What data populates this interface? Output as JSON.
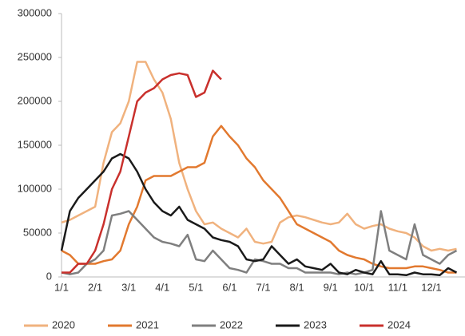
{
  "chart_data": {
    "type": "line",
    "categories": [
      "1/1",
      null,
      null,
      null,
      "2/1",
      null,
      null,
      null,
      "3/1",
      null,
      null,
      null,
      "4/1",
      null,
      null,
      null,
      "5/1",
      null,
      null,
      null,
      "6/1",
      null,
      null,
      null,
      "7/1",
      null,
      null,
      null,
      "8/1",
      null,
      null,
      null,
      "9/1",
      null,
      null,
      null,
      "10/1",
      null,
      null,
      null,
      "11/1",
      null,
      null,
      null,
      "12/1",
      null,
      null,
      null
    ],
    "ylim": [
      0,
      300000
    ],
    "yticks": [
      0,
      50000,
      100000,
      150000,
      200000,
      250000,
      300000
    ],
    "legend": "bottom",
    "series": [
      {
        "name": "2020",
        "color": "#f0b27e",
        "values": [
          62000,
          65000,
          70000,
          75000,
          80000,
          130000,
          165000,
          175000,
          200000,
          245000,
          245000,
          225000,
          210000,
          180000,
          130000,
          100000,
          75000,
          60000,
          62000,
          55000,
          50000,
          45000,
          55000,
          40000,
          38000,
          40000,
          62000,
          68000,
          70000,
          68000,
          65000,
          62000,
          60000,
          62000,
          72000,
          60000,
          55000,
          58000,
          60000,
          55000,
          52000,
          50000,
          45000,
          35000,
          30000,
          32000,
          30000,
          32000
        ]
      },
      {
        "name": "2021",
        "color": "#e2792f",
        "values": [
          30000,
          25000,
          15000,
          15000,
          15000,
          18000,
          20000,
          30000,
          60000,
          80000,
          110000,
          115000,
          115000,
          115000,
          120000,
          125000,
          125000,
          130000,
          160000,
          172000,
          160000,
          150000,
          135000,
          125000,
          110000,
          100000,
          90000,
          75000,
          60000,
          55000,
          50000,
          45000,
          40000,
          30000,
          25000,
          22000,
          20000,
          15000,
          12000,
          10000,
          10000,
          10000,
          12000,
          12000,
          10000,
          8000,
          5000,
          5000
        ]
      },
      {
        "name": "2022",
        "color": "#7f7f7f",
        "values": [
          5000,
          3000,
          5000,
          15000,
          20000,
          30000,
          70000,
          72000,
          75000,
          65000,
          55000,
          45000,
          40000,
          38000,
          35000,
          48000,
          20000,
          18000,
          30000,
          20000,
          10000,
          8000,
          5000,
          20000,
          18000,
          15000,
          15000,
          10000,
          10000,
          5000,
          5000,
          5000,
          5000,
          3000,
          5000,
          3000,
          5000,
          8000,
          75000,
          30000,
          25000,
          20000,
          60000,
          25000,
          20000,
          15000,
          25000,
          30000
        ]
      },
      {
        "name": "2023",
        "color": "#1a1a1a",
        "values": [
          30000,
          75000,
          90000,
          100000,
          110000,
          120000,
          135000,
          140000,
          135000,
          120000,
          100000,
          85000,
          75000,
          70000,
          80000,
          65000,
          60000,
          55000,
          45000,
          42000,
          40000,
          35000,
          20000,
          18000,
          20000,
          35000,
          25000,
          15000,
          20000,
          12000,
          10000,
          8000,
          15000,
          5000,
          3000,
          8000,
          5000,
          3000,
          18000,
          3000,
          3000,
          2000,
          5000,
          3000,
          3000,
          2000,
          10000,
          5000
        ]
      },
      {
        "name": "2024",
        "color": "#c9302c",
        "values": [
          5000,
          5000,
          15000,
          15000,
          30000,
          60000,
          100000,
          120000,
          160000,
          200000,
          210000,
          215000,
          225000,
          230000,
          232000,
          230000,
          205000,
          210000,
          235000,
          225000,
          null,
          null,
          null,
          null,
          null,
          null,
          null,
          null,
          null,
          null,
          null,
          null,
          null,
          null,
          null,
          null,
          null,
          null,
          null,
          null,
          null,
          null,
          null,
          null,
          null,
          null,
          null,
          null
        ]
      }
    ]
  }
}
